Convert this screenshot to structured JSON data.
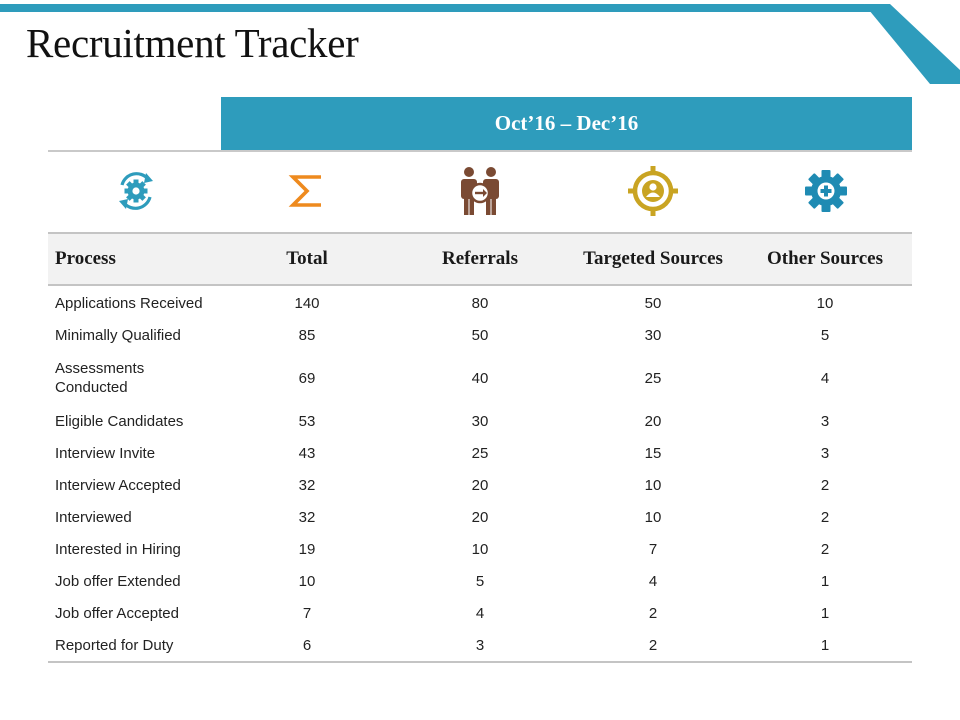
{
  "title": "Recruitment Tracker",
  "colors": {
    "accent": "#2e9cbc",
    "sigma": "#ee8a1e",
    "people": "#7a4a33",
    "target": "#c9a422",
    "gear": "#1f8bb3"
  },
  "period": "Oct’16 – Dec’16",
  "icons": [
    "cycle-gear-icon",
    "sigma-icon",
    "people-arrow-icon",
    "target-person-icon",
    "gear-plus-icon"
  ],
  "columns": [
    "Process",
    "Total",
    "Referrals",
    "Targeted Sources",
    "Other Sources"
  ],
  "rows": [
    {
      "process": "Applications Received",
      "total": "140",
      "referrals": "80",
      "targeted": "50",
      "other": "10"
    },
    {
      "process": "Minimally Qualified",
      "total": "85",
      "referrals": "50",
      "targeted": "30",
      "other": "5"
    },
    {
      "process": "Assessments Conducted",
      "total": "69",
      "referrals": "40",
      "targeted": "25",
      "other": "4"
    },
    {
      "process": "Eligible Candidates",
      "total": "53",
      "referrals": "30",
      "targeted": "20",
      "other": "3"
    },
    {
      "process": "Interview Invite",
      "total": "43",
      "referrals": "25",
      "targeted": "15",
      "other": "3"
    },
    {
      "process": "Interview Accepted",
      "total": "32",
      "referrals": "20",
      "targeted": "10",
      "other": "2"
    },
    {
      "process": "Interviewed",
      "total": "32",
      "referrals": "20",
      "targeted": "10",
      "other": "2"
    },
    {
      "process": "Interested in Hiring",
      "total": "19",
      "referrals": "10",
      "targeted": "7",
      "other": "2"
    },
    {
      "process": "Job offer Extended",
      "total": "10",
      "referrals": "5",
      "targeted": "4",
      "other": "1"
    },
    {
      "process": "Job offer Accepted",
      "total": "7",
      "referrals": "4",
      "targeted": "2",
      "other": "1"
    },
    {
      "process": "Reported for Duty",
      "total": "6",
      "referrals": "3",
      "targeted": "2",
      "other": "1"
    }
  ]
}
